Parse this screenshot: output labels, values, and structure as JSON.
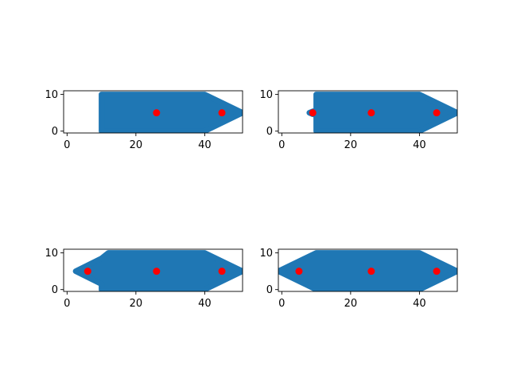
{
  "chart_data": [
    {
      "type": "scatter",
      "title": "",
      "xlabel": "",
      "ylabel": "",
      "xlim": [
        -1,
        51
      ],
      "ylim": [
        -0.5,
        11
      ],
      "xticks": [
        0,
        20,
        40
      ],
      "yticks": [
        0,
        10
      ],
      "grid": false,
      "legend": "none",
      "cloud_color": "#1f77b4",
      "point_color": "#ff0000",
      "cloud_outline": [
        [
          10,
          0
        ],
        [
          10,
          10
        ],
        [
          40,
          10
        ],
        [
          51,
          5
        ],
        [
          40,
          0
        ]
      ],
      "points": [
        {
          "x": 26,
          "y": 5
        },
        {
          "x": 45,
          "y": 5
        }
      ]
    },
    {
      "type": "scatter",
      "title": "",
      "xlabel": "",
      "ylabel": "",
      "xlim": [
        -1,
        51
      ],
      "ylim": [
        -0.5,
        11
      ],
      "xticks": [
        0,
        20,
        40
      ],
      "yticks": [
        0,
        10
      ],
      "grid": false,
      "legend": "none",
      "cloud_color": "#1f77b4",
      "point_color": "#ff0000",
      "cloud_outline": [
        [
          8,
          5
        ],
        [
          9,
          5.4
        ],
        [
          10,
          5.6
        ],
        [
          10,
          10
        ],
        [
          40,
          10
        ],
        [
          51,
          5
        ],
        [
          40,
          0
        ],
        [
          10,
          0
        ],
        [
          10,
          4.4
        ],
        [
          9,
          4.6
        ]
      ],
      "points": [
        {
          "x": 9,
          "y": 5
        },
        {
          "x": 26,
          "y": 5
        },
        {
          "x": 45,
          "y": 5
        }
      ]
    },
    {
      "type": "scatter",
      "title": "",
      "xlabel": "",
      "ylabel": "",
      "xlim": [
        -1,
        51
      ],
      "ylim": [
        -0.5,
        11
      ],
      "xticks": [
        0,
        20,
        40
      ],
      "yticks": [
        0,
        10
      ],
      "grid": false,
      "legend": "none",
      "cloud_color": "#1f77b4",
      "point_color": "#ff0000",
      "cloud_outline": [
        [
          2.5,
          5
        ],
        [
          10,
          8.5
        ],
        [
          12,
          10
        ],
        [
          40,
          10
        ],
        [
          51,
          5
        ],
        [
          40,
          0
        ],
        [
          10,
          0
        ],
        [
          10,
          1.5
        ]
      ],
      "points": [
        {
          "x": 6,
          "y": 5
        },
        {
          "x": 26,
          "y": 5
        },
        {
          "x": 45,
          "y": 5
        }
      ]
    },
    {
      "type": "scatter",
      "title": "",
      "xlabel": "",
      "ylabel": "",
      "xlim": [
        -1,
        51
      ],
      "ylim": [
        -0.5,
        11
      ],
      "xticks": [
        0,
        20,
        40
      ],
      "yticks": [
        0,
        10
      ],
      "grid": false,
      "legend": "none",
      "cloud_color": "#1f77b4",
      "point_color": "#ff0000",
      "cloud_outline": [
        [
          -1,
          5
        ],
        [
          10,
          10
        ],
        [
          40,
          10
        ],
        [
          51,
          5
        ],
        [
          40,
          0
        ],
        [
          10,
          0
        ]
      ],
      "points": [
        {
          "x": 5,
          "y": 5
        },
        {
          "x": 26,
          "y": 5
        },
        {
          "x": 45,
          "y": 5
        }
      ]
    }
  ]
}
